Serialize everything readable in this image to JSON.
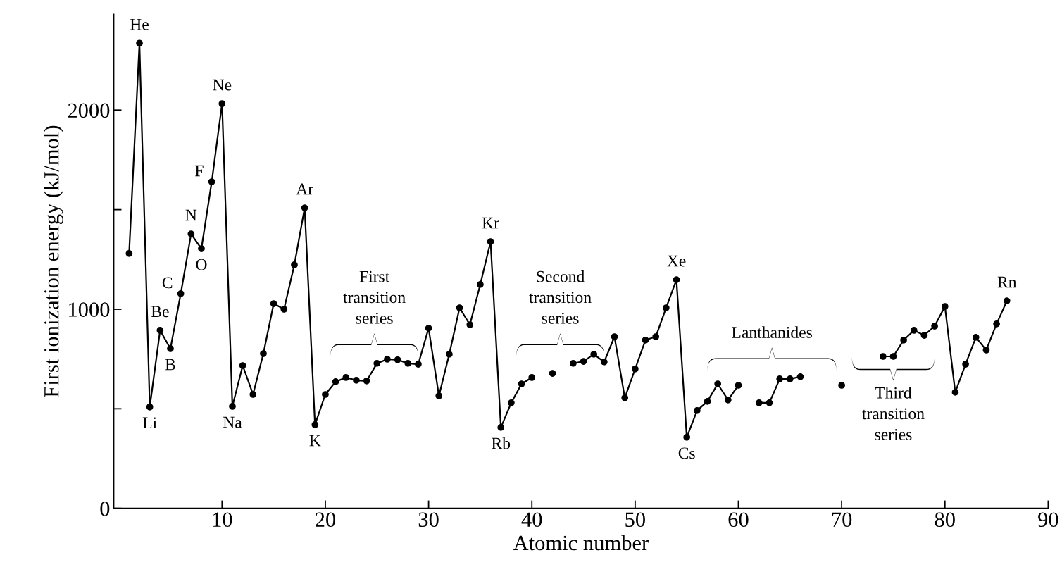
{
  "chart_data": {
    "type": "line",
    "xlabel": "Atomic number",
    "ylabel": "First ionization energy (kJ/mol)",
    "x": [
      1,
      2,
      3,
      4,
      5,
      6,
      7,
      8,
      9,
      10,
      11,
      12,
      13,
      14,
      15,
      16,
      17,
      18,
      19,
      20,
      21,
      22,
      23,
      24,
      25,
      26,
      27,
      28,
      29,
      30,
      31,
      32,
      33,
      34,
      35,
      36,
      37,
      38,
      39,
      40,
      41,
      42,
      43,
      44,
      45,
      46,
      47,
      48,
      49,
      50,
      51,
      52,
      53,
      54,
      55,
      56,
      57,
      58,
      59,
      60,
      61,
      62,
      63,
      64,
      65,
      66,
      67,
      68,
      69,
      70,
      71,
      72,
      73,
      74,
      75,
      76,
      77,
      78,
      79,
      80,
      81,
      82,
      83,
      84,
      85,
      86
    ],
    "series": [
      {
        "color": "#000000",
        "values": [
          1280,
          2336,
          509,
          894,
          802,
          1078,
          1378,
          1304,
          1640,
          2032,
          512,
          717,
          572,
          777,
          1028,
          1000,
          1223,
          1509,
          420,
          572,
          636,
          657,
          643,
          640,
          728,
          749,
          746,
          728,
          724,
          905,
          565,
          774,
          1007,
          922,
          1124,
          1339,
          406,
          530,
          625,
          657,
          null,
          678,
          null,
          728,
          738,
          774,
          735,
          862,
          555,
          700,
          845,
          862,
          1007,
          1148,
          357,
          491,
          537,
          625,
          544,
          618,
          null,
          530,
          530,
          650,
          650,
          661,
          null,
          null,
          null,
          618,
          null,
          null,
          null,
          763,
          763,
          845,
          894,
          869,
          915,
          1014,
          583,
          724,
          859,
          795,
          926,
          1042
        ]
      }
    ],
    "xlim": [
      -0.5,
      90
    ],
    "ylim": [
      0,
      2480
    ],
    "xticks": [
      10,
      20,
      30,
      40,
      50,
      60,
      70,
      80,
      90
    ],
    "yticks": [
      0,
      {
        "value": 500,
        "label": null
      },
      1000,
      {
        "value": 1500,
        "label": null
      },
      2000
    ],
    "marker": "circle",
    "line_style": "solid",
    "grid": false,
    "legend": false,
    "annotations": [
      {
        "text": "He",
        "x": 2,
        "y": 2336
      },
      {
        "text": "Li",
        "x": 3,
        "y": 509
      },
      {
        "text": "Be",
        "x": 4,
        "y": 894
      },
      {
        "text": "B",
        "x": 5,
        "y": 802
      },
      {
        "text": "C",
        "x": 6,
        "y": 1078
      },
      {
        "text": "N",
        "x": 7,
        "y": 1378
      },
      {
        "text": "O",
        "x": 8,
        "y": 1304
      },
      {
        "text": "F",
        "x": 9,
        "y": 1640
      },
      {
        "text": "Ne",
        "x": 10,
        "y": 2032
      },
      {
        "text": "Na",
        "x": 11,
        "y": 512
      },
      {
        "text": "Ar",
        "x": 18,
        "y": 1509
      },
      {
        "text": "K",
        "x": 19,
        "y": 420
      },
      {
        "text": "Kr",
        "x": 36,
        "y": 1339
      },
      {
        "text": "Rb",
        "x": 37,
        "y": 406
      },
      {
        "text": "Xe",
        "x": 54,
        "y": 1148
      },
      {
        "text": "Cs",
        "x": 55,
        "y": 357
      },
      {
        "text": "Rn",
        "x": 86,
        "y": 1042
      },
      "First\ntransition\nseries",
      "Second\ntransition\nseries",
      "Lanthanides",
      "Third\ntransition\nseries"
    ]
  }
}
